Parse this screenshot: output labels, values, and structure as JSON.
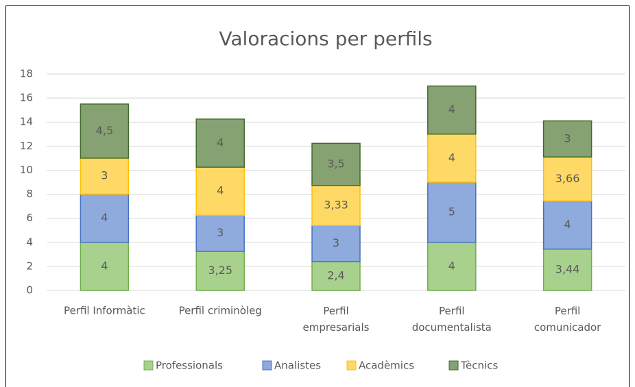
{
  "chart_data": {
    "type": "stacked_bar",
    "title": "Valoracions per perfils",
    "categories": [
      "Perfil Informàtic",
      "Perfil criminòleg",
      "Perfil empresarials",
      "Perfil documentalista",
      "Perfil comunicador"
    ],
    "series": [
      {
        "name": "Professionals",
        "color": "#a9d18e",
        "values": [
          4,
          3.25,
          2.4,
          4,
          3.44
        ],
        "value_labels": [
          "4",
          "3,25",
          "2,4",
          "4",
          "3,44"
        ]
      },
      {
        "name": "Analistes",
        "color": "#8faadc",
        "values": [
          4,
          3,
          3,
          5,
          4
        ],
        "value_labels": [
          "4",
          "3",
          "3",
          "5",
          "4"
        ]
      },
      {
        "name": "Acadèmics",
        "color": "#ffd966",
        "values": [
          3,
          4,
          3.33,
          4,
          3.66
        ],
        "value_labels": [
          "3",
          "4",
          "3,33",
          "4",
          "3,66"
        ]
      },
      {
        "name": "Tècnics",
        "color": "#87a272",
        "values": [
          4.5,
          4,
          3.5,
          4,
          3
        ],
        "value_labels": [
          "4,5",
          "4",
          "3,5",
          "4",
          "3"
        ]
      }
    ],
    "ylim": [
      0,
      18
    ],
    "yticks": [
      0,
      2,
      4,
      6,
      8,
      10,
      12,
      14,
      16,
      18
    ],
    "grid": true,
    "legend": "bottom"
  }
}
